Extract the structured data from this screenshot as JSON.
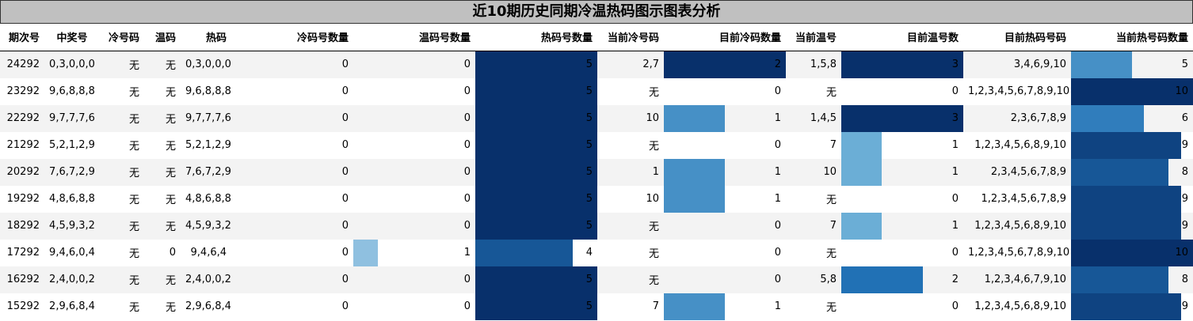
{
  "title": "近10期历史同期冷温热码图示图表分析",
  "chart_data": {
    "type": "table",
    "columns": [
      "期次号",
      "中奖号",
      "冷号码",
      "温码",
      "热码",
      "冷码号数量",
      "温码号数量",
      "热码号数量",
      "当前冷号码",
      "目前冷码数量",
      "当前温号",
      "目前温号数",
      "目前热码号码",
      "当前热号码数量"
    ],
    "bar_columns": [
      5,
      6,
      7,
      9,
      11,
      13
    ],
    "bar_max": {
      "5": 5,
      "6": 5,
      "7": 5,
      "9": 2,
      "11": 3,
      "13": 10
    },
    "rows": [
      [
        "24292",
        "0,3,0,0,0",
        "无",
        "无",
        "0,3,0,0,0",
        0,
        0,
        5,
        "2,7",
        2,
        "1,5,8",
        3,
        "3,4,6,9,10",
        5
      ],
      [
        "23292",
        "9,6,8,8,8",
        "无",
        "无",
        "9,6,8,8,8",
        0,
        0,
        5,
        "无",
        0,
        "无",
        0,
        "1,2,3,4,5,6,7,8,9,10",
        10
      ],
      [
        "22292",
        "9,7,7,7,6",
        "无",
        "无",
        "9,7,7,7,6",
        0,
        0,
        5,
        "10",
        1,
        "1,4,5",
        3,
        "2,3,6,7,8,9",
        6
      ],
      [
        "21292",
        "5,2,1,2,9",
        "无",
        "无",
        "5,2,1,2,9",
        0,
        0,
        5,
        "无",
        0,
        "7",
        1,
        "1,2,3,4,5,6,8,9,10",
        9
      ],
      [
        "20292",
        "7,6,7,2,9",
        "无",
        "无",
        "7,6,7,2,9",
        0,
        0,
        5,
        "1",
        1,
        "10",
        1,
        "2,3,4,5,6,7,8,9",
        8
      ],
      [
        "19292",
        "4,8,6,8,8",
        "无",
        "无",
        "4,8,6,8,8",
        0,
        0,
        5,
        "10",
        1,
        "无",
        0,
        "1,2,3,4,5,6,7,8,9",
        9
      ],
      [
        "18292",
        "4,5,9,3,2",
        "无",
        "无",
        "4,5,9,3,2",
        0,
        0,
        5,
        "无",
        0,
        "7",
        1,
        "1,2,3,4,5,6,8,9,10",
        9
      ],
      [
        "17292",
        "9,4,6,0,4",
        "无",
        "0",
        "9,4,6,4",
        0,
        1,
        4,
        "无",
        0,
        "无",
        0,
        "1,2,3,4,5,6,7,8,9,10",
        10
      ],
      [
        "16292",
        "2,4,0,0,2",
        "无",
        "无",
        "2,4,0,0,2",
        0,
        0,
        5,
        "无",
        0,
        "5,8",
        2,
        "1,2,3,4,6,7,9,10",
        8
      ],
      [
        "15292",
        "2,9,6,8,4",
        "无",
        "无",
        "2,9,6,8,4",
        0,
        0,
        5,
        "7",
        1,
        "无",
        0,
        "1,2,3,4,5,6,8,9,10",
        9
      ]
    ]
  }
}
